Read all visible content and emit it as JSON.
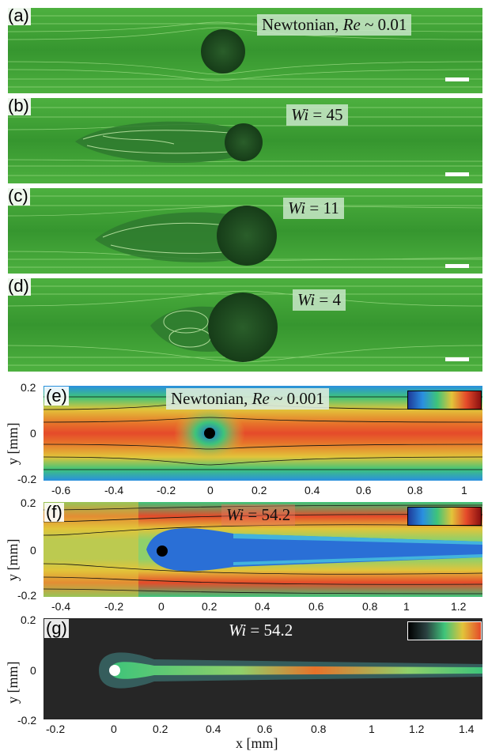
{
  "panels": {
    "a": {
      "label": "(a)",
      "title_prefix": "Newtonian, ",
      "title_var": "Re",
      "title_suffix": " ~ 0.01"
    },
    "b": {
      "label": "(b)",
      "title_var": "Wi",
      "title_suffix": " = 45"
    },
    "c": {
      "label": "(c)",
      "title_var": "Wi",
      "title_suffix": " = 11"
    },
    "d": {
      "label": "(d)",
      "title_var": "Wi",
      "title_suffix": " = 4"
    },
    "e": {
      "label": "(e)",
      "title_prefix": "Newtonian, ",
      "title_var": "Re",
      "title_suffix": " ~ 0.001",
      "xticks": [
        "-0.6",
        "-0.4",
        "-0.2",
        "0",
        "0.2",
        "0.4",
        "0.6",
        "0.8",
        "1"
      ],
      "yticks": [
        "0.2",
        "0",
        "-0.2"
      ],
      "ylabel": "y [mm]"
    },
    "f": {
      "label": "(f)",
      "title_var": "Wi",
      "title_suffix": " = 54.2",
      "xticks": [
        "-0.4",
        "-0.2",
        "0",
        "0.2",
        "0.4",
        "0.6",
        "0.8",
        "1",
        "1.2"
      ],
      "yticks": [
        "0.2",
        "0",
        "-0.2"
      ],
      "ylabel": "y [mm]"
    },
    "g": {
      "label": "(g)",
      "title_var": "Wi",
      "title_suffix": " = 54.2",
      "xticks": [
        "-0.2",
        "0",
        "0.2",
        "0.4",
        "0.6",
        "0.8",
        "1",
        "1.2",
        "1.4"
      ],
      "yticks": [
        "0.2",
        "0",
        "-0.2"
      ],
      "ylabel": "y [mm]",
      "xlabel": "x [mm]"
    }
  },
  "colors": {
    "fluid": "#3fa33a",
    "dark_cyl": "#1f4a22",
    "hot": "#e64a2a",
    "cold": "#1e6fd0"
  }
}
